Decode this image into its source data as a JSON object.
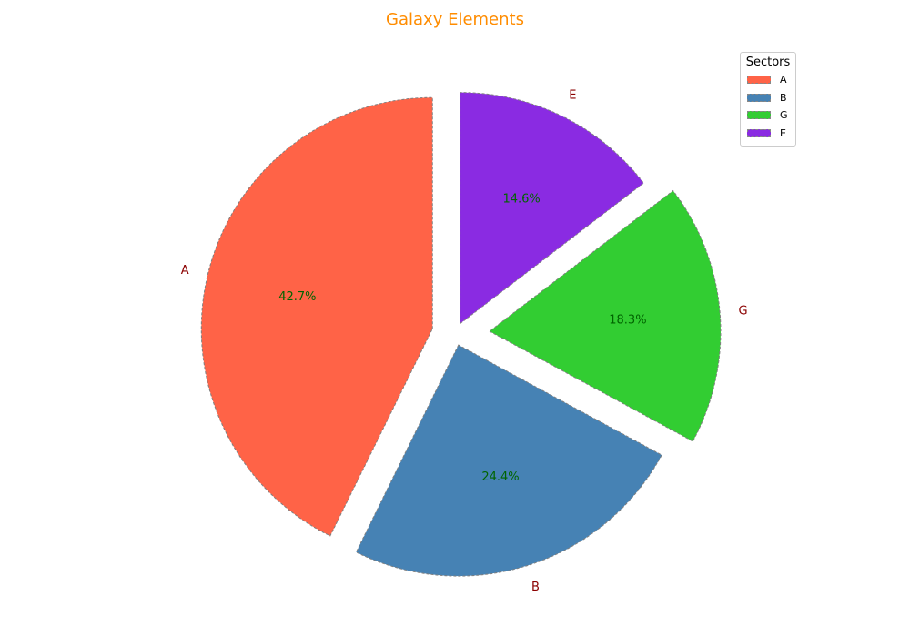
{
  "chart_data": {
    "type": "pie",
    "title": "Galaxy Elements",
    "categories": [
      "A",
      "B",
      "G",
      "E"
    ],
    "values": [
      42.7,
      24.4,
      18.3,
      14.6
    ],
    "value_labels": [
      "42.7%",
      "24.4%",
      "18.3%",
      "14.6%"
    ],
    "colors": [
      "#ff6347",
      "#4682b4",
      "#32cd32",
      "#8a2be2"
    ],
    "explode": [
      0.1,
      0.05,
      0.15,
      0.05
    ],
    "start_angle_degrees": 90,
    "direction": "counterclockwise",
    "legend": {
      "title": "Sectors",
      "placement": "upper-right"
    },
    "title_color": "#ff8c00",
    "category_label_color": "#8b0000",
    "value_label_color": "#006400",
    "edge_color": "#808080",
    "edge_style": "dashed"
  }
}
